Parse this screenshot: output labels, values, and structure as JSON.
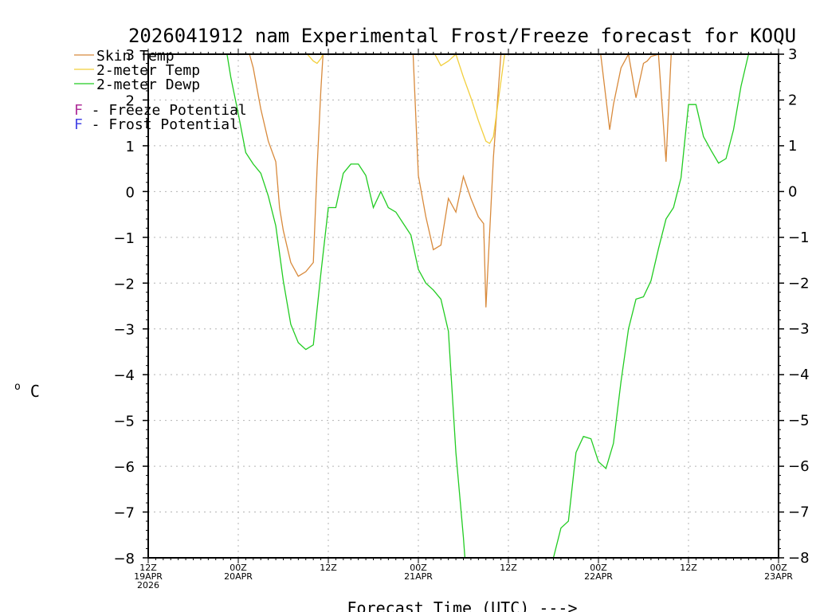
{
  "chart_data": {
    "type": "line",
    "title": "2026041912 nam Experimental Frost/Freeze forecast for KOQU",
    "ylabel_super": "o",
    "ylabel": "C",
    "xlabel": "Forecast Time (UTC) --->",
    "ylim": [
      -8,
      3
    ],
    "xlim": [
      0,
      84
    ],
    "yticks": [
      3,
      2,
      1,
      0,
      -1,
      -2,
      -3,
      -4,
      -5,
      -6,
      -7,
      -8
    ],
    "ytick_labels": [
      "3",
      "2",
      "1",
      "0",
      "−1",
      "−2",
      "−3",
      "−4",
      "−5",
      "−6",
      "−7",
      "−8"
    ],
    "xticks": [
      {
        "x": 0,
        "lines": [
          "12Z",
          "19APR",
          "2026"
        ]
      },
      {
        "x": 12,
        "lines": [
          "00Z",
          "20APR"
        ]
      },
      {
        "x": 24,
        "lines": [
          "12Z"
        ]
      },
      {
        "x": 36,
        "lines": [
          "00Z",
          "21APR"
        ]
      },
      {
        "x": 48,
        "lines": [
          "12Z"
        ]
      },
      {
        "x": 60,
        "lines": [
          "00Z",
          "22APR"
        ]
      },
      {
        "x": 72,
        "lines": [
          "12Z"
        ]
      },
      {
        "x": 84,
        "lines": [
          "00Z",
          "23APR"
        ]
      }
    ],
    "grid": true,
    "legend_position": "top-left",
    "legend": [
      {
        "label": "Skin Temp",
        "color": "#d88a3c"
      },
      {
        "label": "2-meter Temp",
        "color": "#f2cf3c"
      },
      {
        "label": "2-meter Dewp",
        "color": "#22cc22"
      }
    ],
    "annotations": [
      {
        "letter": "F",
        "text": " - Freeze Potential",
        "color": "#b0309a"
      },
      {
        "letter": "F",
        "text": " - Frost Potential",
        "color": "#4646e6"
      }
    ],
    "series": [
      {
        "name": "Skin Temp",
        "color": "#d88a3c",
        "x": [
          13.5,
          14,
          15,
          16,
          17,
          17.5,
          18,
          19,
          20,
          21,
          22,
          22.5,
          23,
          23.3,
          35.3,
          36,
          37,
          38,
          39,
          40,
          41,
          42,
          43,
          44,
          44.7,
          45,
          46,
          47,
          48,
          48.5,
          60.3,
          61.5,
          62,
          63,
          64,
          65,
          66,
          66.5,
          67,
          68,
          69,
          69.7,
          70.2
        ],
        "y": [
          3,
          2.7,
          1.8,
          1.1,
          0.65,
          -0.35,
          -0.85,
          -1.55,
          -1.85,
          -1.75,
          -1.55,
          0.5,
          2.2,
          3,
          3,
          0.35,
          -0.55,
          -1.27,
          -1.17,
          -0.15,
          -0.45,
          0.33,
          -0.15,
          -0.55,
          -0.7,
          -2.53,
          0.75,
          3,
          3,
          3,
          3,
          1.35,
          1.9,
          2.7,
          3,
          2.05,
          2.8,
          2.85,
          2.95,
          3,
          0.65,
          3,
          3
        ]
      },
      {
        "name": "2-meter Temp",
        "color": "#f2cf3c",
        "x": [
          21.2,
          22,
          22.5,
          23,
          23.3,
          38.2,
          39,
          40,
          41,
          42,
          43,
          44,
          45,
          45.5,
          46,
          47,
          47.5
        ],
        "y": [
          3,
          2.85,
          2.8,
          2.9,
          3,
          3,
          2.75,
          2.85,
          3,
          2.5,
          2.05,
          1.55,
          1.1,
          1.05,
          1.2,
          2.4,
          3
        ]
      },
      {
        "name": "2-meter Dewp",
        "color": "#22cc22",
        "x": [
          10.5,
          11,
          12,
          13,
          14,
          15,
          16,
          17,
          18,
          19,
          20,
          21,
          22,
          23,
          24,
          25,
          26,
          27,
          28,
          29,
          30,
          31,
          32,
          33,
          34,
          35,
          36,
          37,
          38,
          39,
          40,
          41,
          42,
          42.2,
          54,
          55,
          56,
          57,
          58,
          59,
          60,
          61,
          62,
          63,
          64,
          65,
          66,
          67,
          68,
          69,
          70,
          71,
          72,
          73,
          74,
          75,
          76,
          77,
          78,
          79,
          80
        ],
        "y": [
          3,
          2.5,
          1.7,
          0.85,
          0.6,
          0.4,
          -0.1,
          -0.75,
          -1.95,
          -2.9,
          -3.3,
          -3.45,
          -3.35,
          -1.8,
          -0.35,
          -0.35,
          0.4,
          0.6,
          0.6,
          0.35,
          -0.35,
          0,
          -0.35,
          -0.45,
          -0.7,
          -0.95,
          -1.7,
          -2,
          -2.15,
          -2.35,
          -3.05,
          -5.7,
          -7.55,
          -8,
          -8,
          -7.35,
          -7.2,
          -5.7,
          -5.35,
          -5.4,
          -5.9,
          -6.05,
          -5.5,
          -4.15,
          -3,
          -2.35,
          -2.3,
          -1.95,
          -1.25,
          -0.6,
          -0.35,
          0.3,
          1.9,
          1.9,
          1.2,
          0.9,
          0.62,
          0.72,
          1.35,
          2.3,
          3
        ]
      }
    ]
  }
}
